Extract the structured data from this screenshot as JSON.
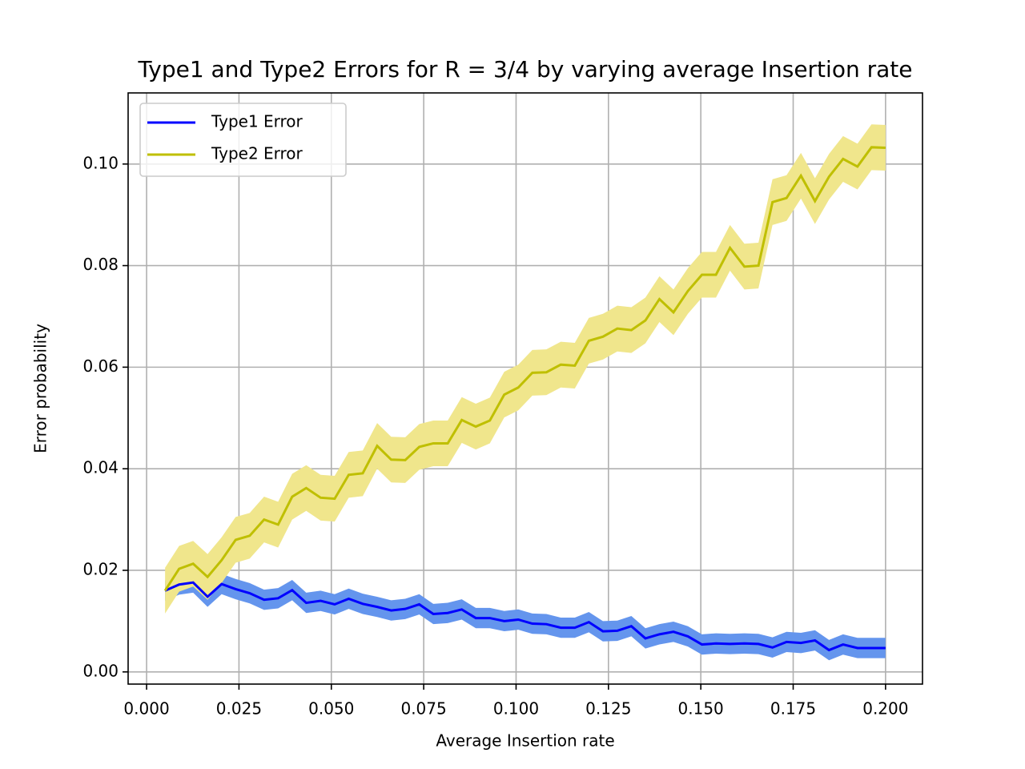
{
  "chart_data": {
    "type": "line",
    "title": "Type1 and Type2 Errors for R = 3/4 by varying average Insertion rate",
    "x_label": "Average Insertion rate",
    "y_label": "Error probability",
    "x": [
      0.005,
      0.0088,
      0.0126,
      0.0165,
      0.0203,
      0.0241,
      0.0279,
      0.0318,
      0.0356,
      0.0394,
      0.0432,
      0.0471,
      0.0509,
      0.0547,
      0.0585,
      0.0624,
      0.0662,
      0.07,
      0.0738,
      0.0776,
      0.0815,
      0.0853,
      0.0891,
      0.0929,
      0.0968,
      0.1006,
      0.1044,
      0.1082,
      0.1121,
      0.1159,
      0.1197,
      0.1235,
      0.1274,
      0.1312,
      0.135,
      0.1388,
      0.1426,
      0.1465,
      0.1503,
      0.1541,
      0.1579,
      0.1618,
      0.1656,
      0.1694,
      0.1732,
      0.1771,
      0.1809,
      0.1847,
      0.1885,
      0.1924,
      0.1962,
      0.2
    ],
    "series": [
      {
        "name": "Type1 Error",
        "color": "#0000ff",
        "band_color": "#6495ed",
        "values": [
          0.016,
          0.0172,
          0.0176,
          0.0148,
          0.0173,
          0.0163,
          0.0155,
          0.0142,
          0.0145,
          0.0161,
          0.0136,
          0.014,
          0.0133,
          0.0144,
          0.0134,
          0.0128,
          0.0121,
          0.0124,
          0.0133,
          0.0114,
          0.0116,
          0.0123,
          0.0106,
          0.0106,
          0.01,
          0.0103,
          0.0095,
          0.0094,
          0.0087,
          0.0087,
          0.0098,
          0.008,
          0.0081,
          0.009,
          0.0066,
          0.0074,
          0.0079,
          0.007,
          0.0054,
          0.0056,
          0.0055,
          0.0056,
          0.0055,
          0.0048,
          0.0059,
          0.0057,
          0.0062,
          0.0043,
          0.0054,
          0.0047,
          0.0047,
          0.0047
        ],
        "lower": [
          0.014,
          0.0152,
          0.0156,
          0.0128,
          0.0153,
          0.0143,
          0.0135,
          0.0122,
          0.0125,
          0.0141,
          0.0116,
          0.012,
          0.0113,
          0.0124,
          0.0114,
          0.0108,
          0.0101,
          0.0104,
          0.0113,
          0.0094,
          0.0096,
          0.0103,
          0.0086,
          0.0086,
          0.008,
          0.0083,
          0.0075,
          0.0074,
          0.0067,
          0.0067,
          0.0078,
          0.006,
          0.0061,
          0.007,
          0.0046,
          0.0054,
          0.0059,
          0.005,
          0.0034,
          0.0036,
          0.0035,
          0.0036,
          0.0035,
          0.0028,
          0.0039,
          0.0037,
          0.0042,
          0.0023,
          0.0034,
          0.0027,
          0.0027,
          0.0027
        ],
        "upper": [
          0.018,
          0.0192,
          0.0196,
          0.0168,
          0.0193,
          0.0183,
          0.0175,
          0.0162,
          0.0165,
          0.0181,
          0.0156,
          0.016,
          0.0153,
          0.0164,
          0.0154,
          0.0148,
          0.0141,
          0.0144,
          0.0153,
          0.0134,
          0.0136,
          0.0143,
          0.0126,
          0.0126,
          0.012,
          0.0123,
          0.0115,
          0.0114,
          0.0107,
          0.0107,
          0.0118,
          0.01,
          0.0101,
          0.011,
          0.0086,
          0.0094,
          0.0099,
          0.009,
          0.0074,
          0.0076,
          0.0075,
          0.0076,
          0.0075,
          0.0068,
          0.0079,
          0.0077,
          0.0082,
          0.0063,
          0.0074,
          0.0067,
          0.0067,
          0.0067
        ]
      },
      {
        "name": "Type2 Error",
        "color": "#bfbf00",
        "band_color": "#f0e68c",
        "values": [
          0.016,
          0.0203,
          0.0213,
          0.0187,
          0.022,
          0.026,
          0.0268,
          0.03,
          0.029,
          0.0345,
          0.0362,
          0.0343,
          0.0341,
          0.0388,
          0.0391,
          0.0445,
          0.0418,
          0.0417,
          0.0443,
          0.045,
          0.045,
          0.0496,
          0.0483,
          0.0495,
          0.0546,
          0.056,
          0.0589,
          0.059,
          0.0605,
          0.0603,
          0.0652,
          0.066,
          0.0676,
          0.0673,
          0.0692,
          0.0734,
          0.0708,
          0.075,
          0.0782,
          0.0782,
          0.0835,
          0.0798,
          0.08,
          0.0925,
          0.0933,
          0.0977,
          0.0927,
          0.0975,
          0.101,
          0.0995,
          0.1033,
          0.1032
        ],
        "lower": [
          0.0115,
          0.0158,
          0.0168,
          0.0142,
          0.0175,
          0.0215,
          0.0223,
          0.0255,
          0.0245,
          0.03,
          0.0317,
          0.0298,
          0.0296,
          0.0343,
          0.0346,
          0.04,
          0.0373,
          0.0372,
          0.0398,
          0.0405,
          0.0405,
          0.0451,
          0.0438,
          0.045,
          0.0501,
          0.0515,
          0.0544,
          0.0545,
          0.056,
          0.0558,
          0.0607,
          0.0615,
          0.0631,
          0.0628,
          0.0647,
          0.0689,
          0.0663,
          0.0705,
          0.0737,
          0.0737,
          0.079,
          0.0753,
          0.0755,
          0.088,
          0.0888,
          0.0932,
          0.0882,
          0.093,
          0.0965,
          0.095,
          0.0988,
          0.0987
        ],
        "upper": [
          0.0205,
          0.0248,
          0.0258,
          0.0232,
          0.0265,
          0.0305,
          0.0313,
          0.0345,
          0.0335,
          0.039,
          0.0407,
          0.0388,
          0.0386,
          0.0433,
          0.0436,
          0.049,
          0.0463,
          0.0462,
          0.0488,
          0.0495,
          0.0495,
          0.0541,
          0.0528,
          0.054,
          0.0591,
          0.0605,
          0.0634,
          0.0635,
          0.065,
          0.0648,
          0.0697,
          0.0705,
          0.0721,
          0.0718,
          0.0737,
          0.0779,
          0.0753,
          0.0795,
          0.0827,
          0.0827,
          0.088,
          0.0843,
          0.0845,
          0.097,
          0.0978,
          0.1022,
          0.0972,
          0.102,
          0.1055,
          0.104,
          0.1078,
          0.1077
        ]
      }
    ],
    "xlim": [
      -0.005,
      0.21
    ],
    "ylim": [
      -0.0024,
      0.114
    ],
    "xticks": [
      {
        "value": 0,
        "label": "0.000"
      },
      {
        "value": 0.025,
        "label": "0.025"
      },
      {
        "value": 0.05,
        "label": "0.050"
      },
      {
        "value": 0.075,
        "label": "0.075"
      },
      {
        "value": 0.1,
        "label": "0.100"
      },
      {
        "value": 0.125,
        "label": "0.125"
      },
      {
        "value": 0.15,
        "label": "0.150"
      },
      {
        "value": 0.175,
        "label": "0.175"
      },
      {
        "value": 0.2,
        "label": "0.200"
      }
    ],
    "yticks": [
      {
        "value": 0,
        "label": "0.00"
      },
      {
        "value": 0.02,
        "label": "0.02"
      },
      {
        "value": 0.04,
        "label": "0.04"
      },
      {
        "value": 0.06,
        "label": "0.06"
      },
      {
        "value": 0.08,
        "label": "0.08"
      },
      {
        "value": 0.1,
        "label": "0.10"
      }
    ],
    "grid": true,
    "legend": "upper left"
  }
}
